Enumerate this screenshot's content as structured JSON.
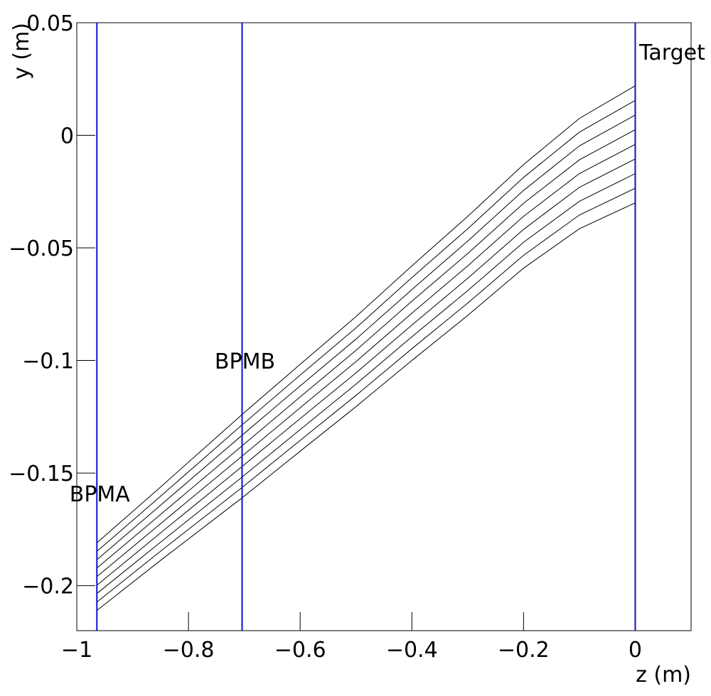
{
  "chart_data": {
    "type": "line",
    "xlabel": "z (m)",
    "ylabel": "y (m)",
    "xlim": [
      -1,
      0.1
    ],
    "ylim": [
      -0.22,
      0.05
    ],
    "xticks": [
      {
        "value": -1,
        "label": "−1"
      },
      {
        "value": -0.8,
        "label": "−0.8"
      },
      {
        "value": -0.6,
        "label": "−0.6"
      },
      {
        "value": -0.4,
        "label": "−0.4"
      },
      {
        "value": -0.2,
        "label": "−0.2"
      },
      0
    ],
    "yticks": [
      0.05,
      0,
      {
        "value": -0.05,
        "label": "−0.05"
      },
      {
        "value": -0.1,
        "label": "−0.1"
      },
      {
        "value": -0.15,
        "label": "−0.15"
      },
      {
        "value": -0.2,
        "label": "−0.2"
      }
    ],
    "markers": [
      {
        "label": "BPMA",
        "z": -0.964,
        "color": "#1010d0"
      },
      {
        "label": "BPMB",
        "z": -0.704,
        "color": "#1010d0"
      },
      {
        "label": "Target",
        "z": 0,
        "color": "#1010d0"
      }
    ],
    "x": [
      -0.964,
      -0.85,
      -0.704,
      -0.6,
      -0.5,
      -0.4,
      -0.3,
      -0.2,
      -0.1,
      0
    ],
    "series": [
      {
        "color": "#000000",
        "values": [
          -0.181,
          -0.1562,
          -0.124,
          -0.1017,
          -0.0805,
          -0.058,
          -0.036,
          -0.013,
          0.0075,
          0.022
        ]
      },
      {
        "color": "#000000",
        "values": [
          -0.1848,
          -0.1603,
          -0.1286,
          -0.1065,
          -0.0855,
          -0.0632,
          -0.0415,
          -0.0187,
          0.0014,
          0.0155
        ]
      },
      {
        "color": "#000000",
        "values": [
          -0.1885,
          -0.1643,
          -0.1332,
          -0.1113,
          -0.0905,
          -0.0685,
          -0.047,
          -0.0245,
          -0.0047,
          0.009
        ]
      },
      {
        "color": "#000000",
        "values": [
          -0.1922,
          -0.1684,
          -0.1379,
          -0.1162,
          -0.0955,
          -0.0737,
          -0.0525,
          -0.0302,
          -0.0109,
          0.0025
        ]
      },
      {
        "color": "#000000",
        "values": [
          -0.196,
          -0.1725,
          -0.1425,
          -0.121,
          -0.1005,
          -0.079,
          -0.058,
          -0.036,
          -0.017,
          -0.004
        ]
      },
      {
        "color": "#000000",
        "values": [
          -0.1998,
          -0.1766,
          -0.1471,
          -0.1258,
          -0.1055,
          -0.0843,
          -0.0635,
          -0.0418,
          -0.0231,
          -0.0105
        ]
      },
      {
        "color": "#000000",
        "values": [
          -0.2035,
          -0.1807,
          -0.1518,
          -0.1307,
          -0.1105,
          -0.0895,
          -0.069,
          -0.0475,
          -0.0293,
          -0.017
        ]
      },
      {
        "color": "#000000",
        "values": [
          -0.2073,
          -0.1847,
          -0.1564,
          -0.1355,
          -0.1155,
          -0.0948,
          -0.0745,
          -0.0533,
          -0.0354,
          -0.0235
        ]
      },
      {
        "color": "#000000",
        "values": [
          -0.211,
          -0.1888,
          -0.161,
          -0.1403,
          -0.1205,
          -0.1,
          -0.08,
          -0.059,
          -0.0415,
          -0.03
        ]
      }
    ]
  }
}
